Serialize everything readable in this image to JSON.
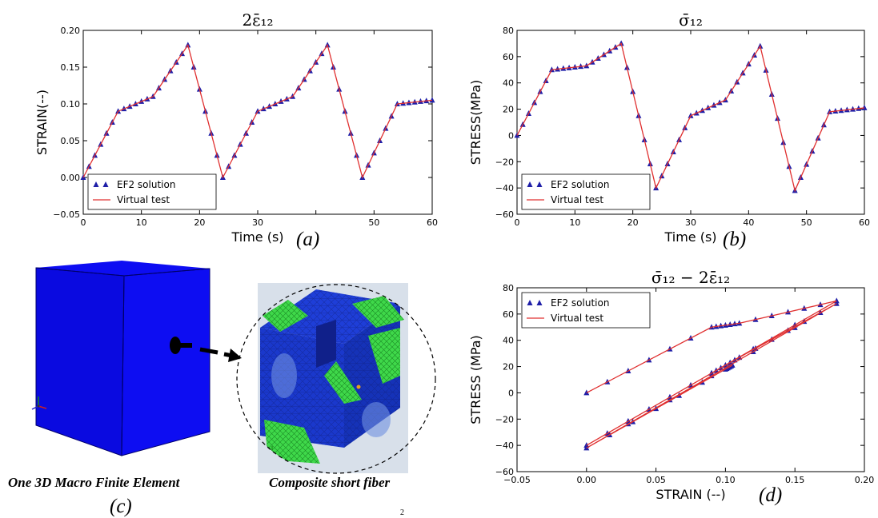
{
  "chart_data": [
    {
      "type": "line",
      "title": "2ε̄₁₂",
      "xlabel": "Time (s)",
      "ylabel": "STRAIN(--)",
      "xlim": [
        0,
        60
      ],
      "ylim": [
        -0.05,
        0.2
      ],
      "xticks": [
        0,
        10,
        20,
        30,
        40,
        50,
        60
      ],
      "xtick_labels": [
        "0",
        "10",
        "20",
        "30",
        "",
        "50",
        "60"
      ],
      "yticks": [
        -0.05,
        0,
        0.05,
        0.1,
        0.15,
        0.2
      ],
      "ytick_labels": [
        "−0.05",
        "0.00",
        "0.05",
        "0.10",
        "0.15",
        "0.20"
      ],
      "legend": {
        "position": "lower-left",
        "entries": [
          "EF2 solution",
          "Virtual test"
        ]
      },
      "grid": false,
      "series": [
        {
          "name": "EF2 solution",
          "style": "triangle-markers",
          "color": "#1f1fa8",
          "x": [
            0,
            6,
            12,
            18,
            24,
            30,
            36,
            42,
            48,
            54,
            60
          ],
          "y": [
            0,
            0.09,
            0.11,
            0.18,
            0,
            0.09,
            0.11,
            0.18,
            0,
            0.1,
            0.105
          ]
        },
        {
          "name": "Virtual test",
          "style": "line",
          "color": "#e03030",
          "x": [
            0,
            6,
            12,
            18,
            24,
            30,
            36,
            42,
            48,
            54,
            60
          ],
          "y": [
            0,
            0.09,
            0.11,
            0.18,
            0,
            0.09,
            0.11,
            0.18,
            0,
            0.1,
            0.105
          ]
        }
      ]
    },
    {
      "type": "line",
      "title": "σ̄₁₂",
      "xlabel": "Time (s)",
      "ylabel": "STRESS(MPa)",
      "xlim": [
        0,
        60
      ],
      "ylim": [
        -60,
        80
      ],
      "xticks": [
        0,
        10,
        20,
        30,
        40,
        50,
        60
      ],
      "xtick_labels": [
        "0",
        "10",
        "20",
        "30",
        "40",
        "50",
        "60"
      ],
      "yticks": [
        -60,
        -40,
        -20,
        0,
        20,
        40,
        60,
        80
      ],
      "ytick_labels": [
        "−60",
        "−40",
        "−20",
        "0",
        "20",
        "40",
        "60",
        "80"
      ],
      "legend": {
        "position": "lower-left",
        "entries": [
          "EF2 solution",
          "Virtual test"
        ]
      },
      "grid": false,
      "series": [
        {
          "name": "EF2 solution",
          "style": "triangle-markers",
          "color": "#1f1fa8",
          "x": [
            0,
            6,
            12,
            18,
            24,
            30,
            36,
            42,
            48,
            54,
            60
          ],
          "y": [
            0,
            50,
            53,
            70,
            -40,
            15,
            27,
            68,
            -42,
            18,
            21
          ]
        },
        {
          "name": "Virtual test",
          "style": "line",
          "color": "#e03030",
          "x": [
            0,
            6,
            12,
            18,
            24,
            30,
            36,
            42,
            48,
            54,
            60
          ],
          "y": [
            0,
            50,
            53,
            70,
            -40,
            15,
            27,
            68,
            -42,
            18,
            21
          ]
        }
      ]
    },
    {
      "type": "line",
      "title": "σ̄₁₂ − 2ε̄₁₂",
      "xlabel": "STRAIN (--)",
      "ylabel": "STRESS (MPa)",
      "xlim": [
        -0.05,
        0.2
      ],
      "ylim": [
        -60,
        80
      ],
      "xticks": [
        -0.05,
        0,
        0.05,
        0.1,
        0.15,
        0.2
      ],
      "xtick_labels": [
        "−0.05",
        "0.00",
        "0.05",
        "0.10",
        "0.15",
        "0.20"
      ],
      "yticks": [
        -60,
        -40,
        -20,
        0,
        20,
        40,
        60,
        80
      ],
      "ytick_labels": [
        "−60",
        "−40",
        "−20",
        "0",
        "20",
        "40",
        "60",
        "80"
      ],
      "legend": {
        "position": "top-left",
        "entries": [
          "EF2 solution",
          "Virtual test"
        ]
      },
      "grid": false,
      "series": [
        {
          "name": "EF2 solution",
          "style": "triangle-markers",
          "color": "#1f1fa8",
          "x": [
            0,
            0.09,
            0.11,
            0.18,
            0,
            0.09,
            0.11,
            0.18,
            0,
            0.1,
            0.105
          ],
          "y": [
            0,
            50,
            53,
            70,
            -40,
            15,
            27,
            68,
            -42,
            18,
            21
          ]
        },
        {
          "name": "Virtual test",
          "style": "line",
          "color": "#e03030",
          "x": [
            0,
            0.09,
            0.11,
            0.18,
            0,
            0.09,
            0.11,
            0.18,
            0,
            0.1,
            0.105
          ],
          "y": [
            0,
            50,
            53,
            70,
            -40,
            15,
            27,
            68,
            -42,
            18,
            21
          ]
        }
      ]
    }
  ],
  "panel_labels": [
    "(a)",
    "(b)",
    "(c)",
    "(d)"
  ],
  "figure": {
    "macro_caption": "One 3D Macro Finite Element",
    "micro_caption": "Composite short fiber",
    "macro_color": "#0d0df2",
    "mesh_color": "#1e3ed8",
    "fiber_color": "#3fd84a",
    "footnote_mark": "2"
  }
}
